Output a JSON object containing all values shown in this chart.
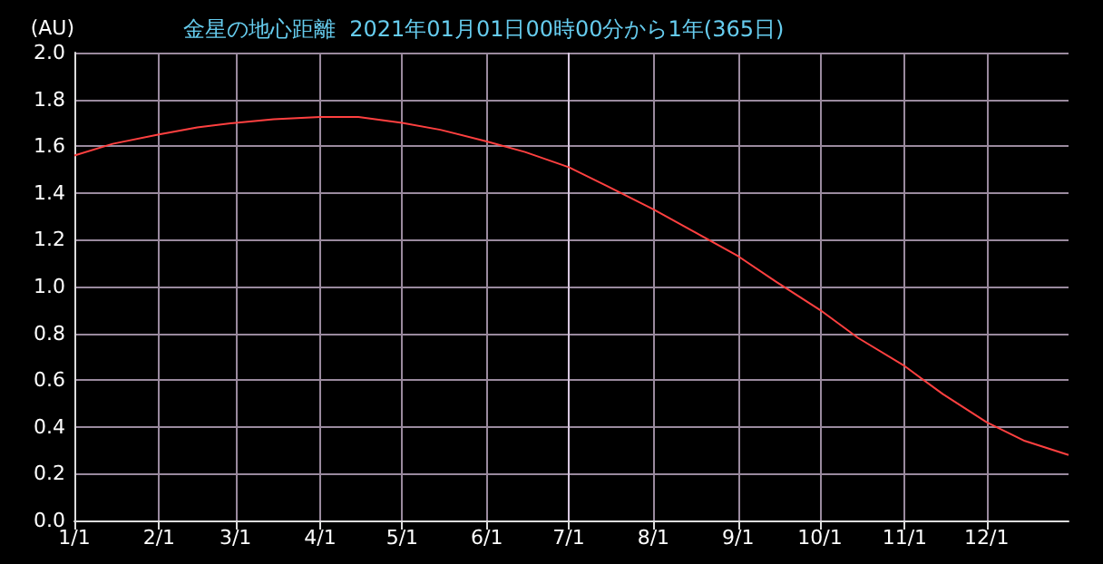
{
  "chart_data": {
    "type": "line",
    "title": "金星の地心距離  2021年01月01日00時00分から1年(365日)",
    "ylabel": "(AU)",
    "x": [
      "--01-01",
      "--01-15",
      "--02-01",
      "--02-15",
      "--03-01",
      "--03-15",
      "--04-01",
      "--04-15",
      "--05-01",
      "--05-15",
      "--06-01",
      "--06-15",
      "--07-01",
      "--07-15",
      "--08-01",
      "--08-15",
      "--09-01",
      "--09-15",
      "--10-01",
      "--10-15",
      "--11-01",
      "--11-15",
      "--12-01",
      "--12-15",
      "--12-31"
    ],
    "series": [
      {
        "color": "#ff4040",
        "values": [
          1.56,
          1.61,
          1.65,
          1.68,
          1.7,
          1.715,
          1.725,
          1.725,
          1.7,
          1.67,
          1.62,
          1.575,
          1.51,
          1.43,
          1.33,
          1.24,
          1.13,
          1.02,
          0.9,
          0.78,
          0.66,
          0.54,
          0.42,
          0.34,
          0.28
        ]
      }
    ],
    "xlim": [
      "--01-01",
      "--12-31"
    ],
    "xticks": [
      {
        "value": "--01-01",
        "label": "1/1"
      },
      {
        "value": "--02-01",
        "label": "2/1"
      },
      {
        "value": "--03-01",
        "label": "3/1"
      },
      {
        "value": "--04-01",
        "label": "4/1"
      },
      {
        "value": "--05-01",
        "label": "5/1"
      },
      {
        "value": "--06-01",
        "label": "6/1"
      },
      {
        "value": "--07-01",
        "label": "7/1"
      },
      {
        "value": "--08-01",
        "label": "8/1"
      },
      {
        "value": "--09-01",
        "label": "9/1"
      },
      {
        "value": "--10-01",
        "label": "10/1"
      },
      {
        "value": "--11-01",
        "label": "11/1"
      },
      {
        "value": "--12-01",
        "label": "12/1"
      }
    ],
    "ylim": [
      0,
      2
    ],
    "yticks": [
      {
        "value": 0,
        "label": "0.0"
      },
      0.2,
      0.4,
      0.6,
      0.8,
      {
        "value": 1,
        "label": "1.0"
      },
      1.2,
      1.4,
      1.6,
      1.8,
      {
        "value": 2,
        "label": "2.0"
      }
    ],
    "ref_lines": [
      {
        "axis": "x",
        "value": "--07-01",
        "color": "#d8c8e0"
      }
    ],
    "grid": true,
    "marker": "none",
    "line_style": "solid"
  }
}
